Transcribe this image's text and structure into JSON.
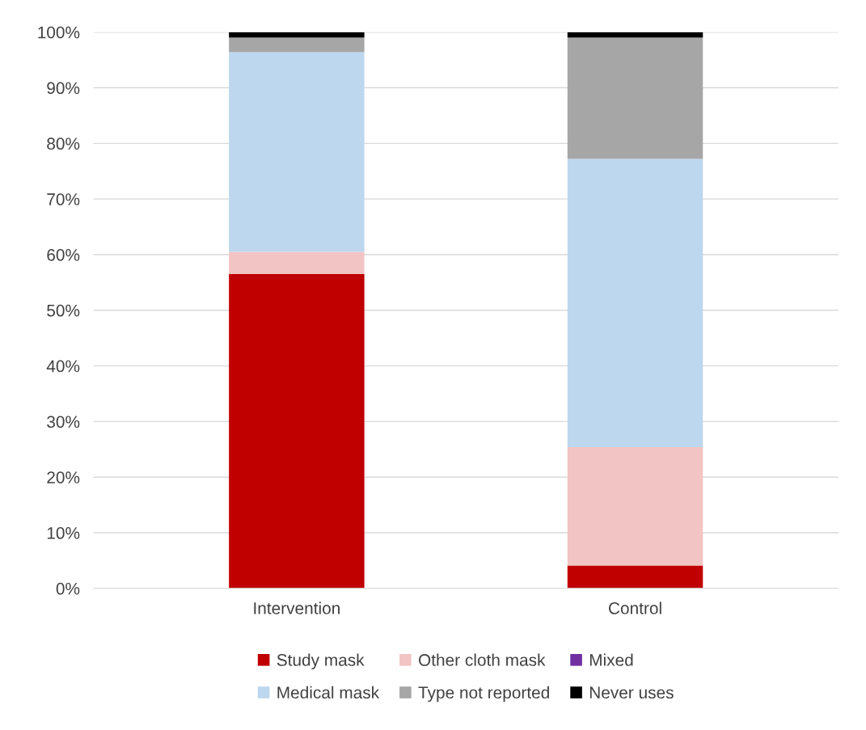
{
  "chart_data": {
    "type": "bar",
    "stacked": true,
    "categories": [
      "Intervention",
      "Control"
    ],
    "series": [
      {
        "name": "Study mask",
        "color": "#c00000",
        "values": [
          56.5,
          4.1
        ]
      },
      {
        "name": "Other cloth mask",
        "color": "#f2c4c4",
        "values": [
          4.0,
          21.3
        ]
      },
      {
        "name": "Mixed",
        "color": "#7030a0",
        "values": [
          0,
          0
        ]
      },
      {
        "name": "Medical mask",
        "color": "#bdd7ee",
        "values": [
          35.9,
          51.8
        ]
      },
      {
        "name": "Type not reported",
        "color": "#a6a6a6",
        "values": [
          2.6,
          21.8
        ]
      },
      {
        "name": "Never uses",
        "color": "#000000",
        "values": [
          1.0,
          1.0
        ]
      }
    ],
    "ylim": [
      0,
      100
    ],
    "yticks": [
      {
        "value": 0,
        "label": "0%"
      },
      {
        "value": 10,
        "label": "10%"
      },
      {
        "value": 20,
        "label": "20%"
      },
      {
        "value": 30,
        "label": "30%"
      },
      {
        "value": 40,
        "label": "40%"
      },
      {
        "value": 50,
        "label": "50%"
      },
      {
        "value": 60,
        "label": "60%"
      },
      {
        "value": 70,
        "label": "70%"
      },
      {
        "value": 80,
        "label": "80%"
      },
      {
        "value": 90,
        "label": "90%"
      },
      {
        "value": 100,
        "label": "100%"
      }
    ],
    "grid": "y",
    "legend": "bottom"
  }
}
